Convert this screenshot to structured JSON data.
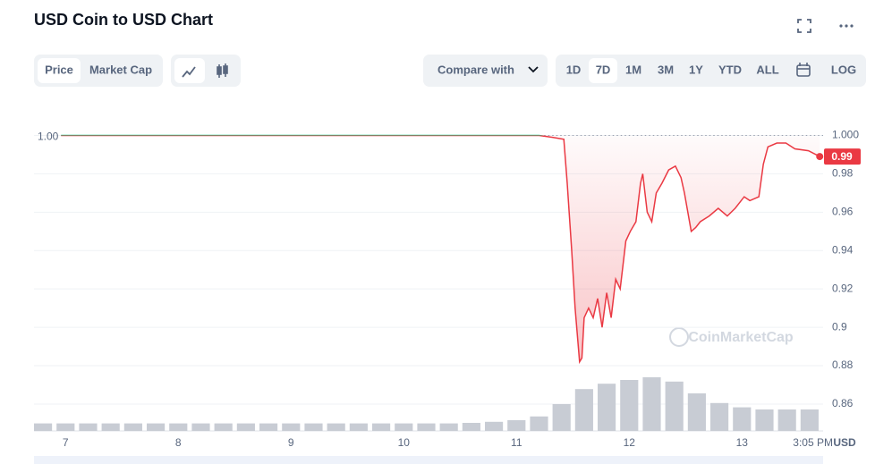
{
  "header": {
    "title": "USD Coin to USD Chart"
  },
  "toolbar": {
    "tabs": [
      "Price",
      "Market Cap"
    ],
    "compare": "Compare with",
    "ranges": [
      "1D",
      "7D",
      "1M",
      "3M",
      "1Y",
      "YTD",
      "ALL"
    ],
    "log": "LOG"
  },
  "chart_data": {
    "type": "line",
    "currency": "USD",
    "watermark": "CoinMarketCap",
    "x": [
      6.96,
      7.61,
      8.41,
      9.21,
      10.0,
      10.8,
      11.2,
      11.32,
      11.42,
      11.45,
      11.49,
      11.52,
      11.56,
      11.58,
      11.6,
      11.64,
      11.68,
      11.72,
      11.76,
      11.8,
      11.84,
      11.88,
      11.92,
      11.97,
      12.01,
      12.06,
      12.1,
      12.12,
      12.16,
      12.2,
      12.24,
      12.29,
      12.35,
      12.41,
      12.46,
      12.49,
      12.55,
      12.59,
      12.63,
      12.71,
      12.79,
      12.87,
      12.94,
      13.02,
      13.07,
      13.15,
      13.19,
      13.23,
      13.31,
      13.39,
      13.47,
      13.59,
      13.69
    ],
    "values": [
      1.0,
      1.0,
      1.0,
      1.0,
      1.0,
      1.0,
      1.0,
      0.999,
      0.998,
      0.975,
      0.94,
      0.91,
      0.882,
      0.884,
      0.905,
      0.91,
      0.905,
      0.915,
      0.9,
      0.918,
      0.905,
      0.925,
      0.92,
      0.945,
      0.95,
      0.955,
      0.975,
      0.98,
      0.96,
      0.955,
      0.97,
      0.975,
      0.982,
      0.984,
      0.978,
      0.97,
      0.95,
      0.952,
      0.955,
      0.958,
      0.962,
      0.958,
      0.962,
      0.968,
      0.966,
      0.968,
      0.985,
      0.994,
      0.996,
      0.996,
      0.993,
      0.992,
      0.989
    ],
    "last_value_label": "0.99",
    "xlim": [
      6.72,
      13.72
    ],
    "xticks": [
      7,
      8,
      9,
      10,
      11,
      12,
      13,
      {
        "value": 13.63,
        "label": "3:05 PM"
      }
    ],
    "ylim": [
      0.846,
      1.01
    ],
    "yticks": [
      {
        "value": 1,
        "label": "1.000"
      },
      0.98,
      0.96,
      0.94,
      0.92,
      0.9,
      0.88,
      0.86
    ],
    "reference": {
      "value": 1,
      "label": "1.00"
    },
    "colors": {
      "above": "#16c784",
      "below": "#ea3943"
    },
    "grid": true,
    "volume": {
      "color": "#c8ccd4",
      "vlim": [
        0,
        100
      ],
      "x": [
        6.8,
        7.0,
        7.2,
        7.4,
        7.6,
        7.8,
        8.0,
        8.2,
        8.4,
        8.6,
        8.8,
        9.0,
        9.2,
        9.4,
        9.6,
        9.8,
        10.0,
        10.2,
        10.4,
        10.6,
        10.8,
        11.0,
        11.2,
        11.4,
        11.6,
        11.8,
        12.0,
        12.2,
        12.4,
        12.6,
        12.8,
        13.0,
        13.2,
        13.4,
        13.6
      ],
      "values": [
        14,
        14,
        14,
        14,
        14,
        14,
        14,
        14,
        14,
        14,
        14,
        14,
        14,
        14,
        14,
        14,
        14,
        14,
        14,
        15,
        17,
        20,
        27,
        50,
        78,
        88,
        95,
        100,
        92,
        70,
        52,
        44,
        40,
        40,
        40
      ]
    }
  }
}
